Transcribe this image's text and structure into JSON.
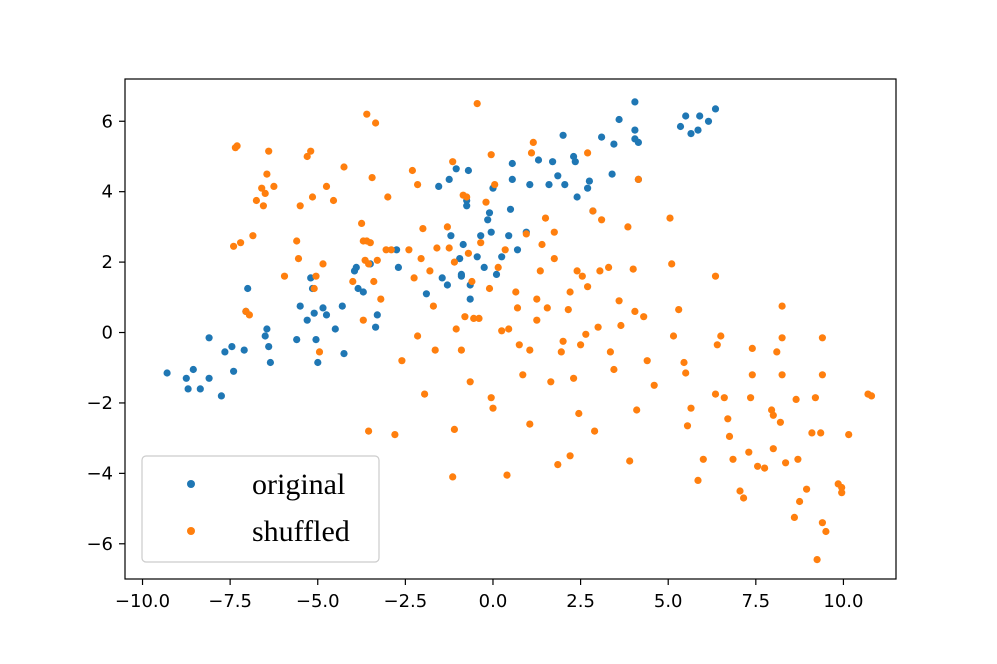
{
  "chart_data": {
    "type": "scatter",
    "title": "",
    "xlabel": "",
    "ylabel": "",
    "xlim": [
      -10.5,
      11.5
    ],
    "ylim": [
      -7.0,
      7.2
    ],
    "xticks": [
      -10.0,
      -7.5,
      -5.0,
      -2.5,
      0.0,
      2.5,
      5.0,
      7.5,
      10.0
    ],
    "xtick_labels": [
      "−10.0",
      "−7.5",
      "−5.0",
      "−2.5",
      "0.0",
      "2.5",
      "5.0",
      "7.5",
      "10.0"
    ],
    "yticks": [
      -6,
      -4,
      -2,
      0,
      2,
      4,
      6
    ],
    "ytick_labels": [
      "−6",
      "−4",
      "−2",
      "0",
      "2",
      "4",
      "6"
    ],
    "grid": false,
    "legend_position": "lower-left",
    "series": [
      {
        "name": "original",
        "color": "#1f77b4",
        "points": [
          [
            -9.3,
            -1.15
          ],
          [
            -8.75,
            -1.3
          ],
          [
            -8.7,
            -1.6
          ],
          [
            -8.55,
            -1.05
          ],
          [
            -8.35,
            -1.6
          ],
          [
            -8.1,
            -1.3
          ],
          [
            -8.1,
            -0.15
          ],
          [
            -7.75,
            -1.8
          ],
          [
            -7.65,
            -0.55
          ],
          [
            -7.45,
            -0.4
          ],
          [
            -7.4,
            -1.1
          ],
          [
            -7.1,
            -0.5
          ],
          [
            -7.0,
            1.25
          ],
          [
            -7.05,
            0.6
          ],
          [
            -6.5,
            -0.1
          ],
          [
            -6.45,
            0.1
          ],
          [
            -6.4,
            -0.4
          ],
          [
            -6.35,
            -0.85
          ],
          [
            -5.6,
            -0.2
          ],
          [
            -5.5,
            0.75
          ],
          [
            -5.3,
            0.35
          ],
          [
            -5.2,
            1.55
          ],
          [
            -5.15,
            1.25
          ],
          [
            -5.0,
            -0.85
          ],
          [
            -5.05,
            -0.2
          ],
          [
            -5.1,
            0.55
          ],
          [
            -4.85,
            0.7
          ],
          [
            -4.75,
            0.5
          ],
          [
            -4.5,
            0.1
          ],
          [
            -4.3,
            0.75
          ],
          [
            -4.25,
            -0.6
          ],
          [
            -3.95,
            1.75
          ],
          [
            -3.9,
            1.85
          ],
          [
            -3.85,
            1.25
          ],
          [
            -3.7,
            1.15
          ],
          [
            -3.5,
            1.95
          ],
          [
            -3.3,
            0.5
          ],
          [
            -3.35,
            0.15
          ],
          [
            -2.75,
            2.35
          ],
          [
            -2.7,
            1.85
          ],
          [
            -1.9,
            1.1
          ],
          [
            -1.55,
            4.15
          ],
          [
            -1.45,
            1.55
          ],
          [
            -1.3,
            1.35
          ],
          [
            -1.25,
            4.35
          ],
          [
            -1.2,
            2.75
          ],
          [
            -1.05,
            4.65
          ],
          [
            -0.9,
            1.65
          ],
          [
            -0.95,
            2.1
          ],
          [
            -0.85,
            2.5
          ],
          [
            -0.9,
            1.6
          ],
          [
            -0.75,
            3.6
          ],
          [
            -0.7,
            4.6
          ],
          [
            -0.75,
            3.75
          ],
          [
            -0.65,
            0.95
          ],
          [
            -0.65,
            1.35
          ],
          [
            -0.45,
            2.15
          ],
          [
            -0.35,
            2.75
          ],
          [
            -0.25,
            1.85
          ],
          [
            -0.15,
            3.2
          ],
          [
            -0.1,
            3.4
          ],
          [
            -0.05,
            2.85
          ],
          [
            0.0,
            4.1
          ],
          [
            0.1,
            1.65
          ],
          [
            0.25,
            2.15
          ],
          [
            0.45,
            2.75
          ],
          [
            0.5,
            3.5
          ],
          [
            0.55,
            4.8
          ],
          [
            0.55,
            4.35
          ],
          [
            0.7,
            2.35
          ],
          [
            0.95,
            2.85
          ],
          [
            1.05,
            4.2
          ],
          [
            1.3,
            4.9
          ],
          [
            1.6,
            4.2
          ],
          [
            1.7,
            4.85
          ],
          [
            1.85,
            4.45
          ],
          [
            2.0,
            5.6
          ],
          [
            2.05,
            4.2
          ],
          [
            2.3,
            5.0
          ],
          [
            2.35,
            4.85
          ],
          [
            2.4,
            3.85
          ],
          [
            2.7,
            4.1
          ],
          [
            2.75,
            4.3
          ],
          [
            2.85,
            3.45
          ],
          [
            3.1,
            5.55
          ],
          [
            3.4,
            4.5
          ],
          [
            3.45,
            5.35
          ],
          [
            3.6,
            6.05
          ],
          [
            4.05,
            6.55
          ],
          [
            4.05,
            5.75
          ],
          [
            4.05,
            5.5
          ],
          [
            4.15,
            5.4
          ],
          [
            4.15,
            4.35
          ],
          [
            5.35,
            5.85
          ],
          [
            5.5,
            6.15
          ],
          [
            5.65,
            5.65
          ],
          [
            5.85,
            5.75
          ],
          [
            5.9,
            6.15
          ],
          [
            6.15,
            6.0
          ],
          [
            6.35,
            6.35
          ]
        ]
      },
      {
        "name": "shuffled",
        "color": "#ff7f0e",
        "points": [
          [
            -7.35,
            5.25
          ],
          [
            -7.3,
            5.3
          ],
          [
            -7.4,
            2.45
          ],
          [
            -7.2,
            2.55
          ],
          [
            -7.05,
            0.6
          ],
          [
            -6.95,
            0.5
          ],
          [
            -6.85,
            2.75
          ],
          [
            -6.75,
            3.75
          ],
          [
            -6.6,
            4.1
          ],
          [
            -6.55,
            3.6
          ],
          [
            -6.5,
            3.95
          ],
          [
            -6.45,
            4.5
          ],
          [
            -6.4,
            5.15
          ],
          [
            -6.25,
            4.15
          ],
          [
            -5.95,
            1.6
          ],
          [
            -5.6,
            2.6
          ],
          [
            -5.55,
            2.1
          ],
          [
            -5.5,
            3.6
          ],
          [
            -5.3,
            5.0
          ],
          [
            -5.2,
            5.15
          ],
          [
            -5.15,
            3.85
          ],
          [
            -5.1,
            1.25
          ],
          [
            -5.05,
            1.6
          ],
          [
            -4.95,
            -0.55
          ],
          [
            -4.85,
            1.95
          ],
          [
            -4.75,
            4.15
          ],
          [
            -4.55,
            3.75
          ],
          [
            -4.25,
            4.7
          ],
          [
            -4.0,
            1.45
          ],
          [
            -3.75,
            3.1
          ],
          [
            -3.7,
            2.6
          ],
          [
            -3.65,
            2.05
          ],
          [
            -3.6,
            6.2
          ],
          [
            -3.6,
            2.6
          ],
          [
            -3.55,
            1.95
          ],
          [
            -3.5,
            2.55
          ],
          [
            -3.45,
            4.4
          ],
          [
            -3.4,
            1.45
          ],
          [
            -3.35,
            5.95
          ],
          [
            -3.3,
            2.05
          ],
          [
            -3.2,
            0.95
          ],
          [
            -3.05,
            2.35
          ],
          [
            -3.0,
            3.85
          ],
          [
            -2.9,
            2.35
          ],
          [
            -2.8,
            -2.9
          ],
          [
            -3.55,
            -2.8
          ],
          [
            -3.7,
            0.35
          ],
          [
            -2.6,
            -0.8
          ],
          [
            -2.25,
            1.55
          ],
          [
            -2.4,
            2.35
          ],
          [
            -2.3,
            4.6
          ],
          [
            -2.15,
            4.2
          ],
          [
            -2.05,
            2.1
          ],
          [
            -2.0,
            2.95
          ],
          [
            -2.15,
            -0.1
          ],
          [
            -1.95,
            -1.75
          ],
          [
            -1.8,
            1.75
          ],
          [
            -1.7,
            0.75
          ],
          [
            -1.65,
            -0.5
          ],
          [
            -1.6,
            2.4
          ],
          [
            -1.3,
            3.0
          ],
          [
            -1.25,
            2.4
          ],
          [
            -1.15,
            4.85
          ],
          [
            -1.1,
            2.0
          ],
          [
            -1.05,
            0.1
          ],
          [
            -1.1,
            -2.75
          ],
          [
            -1.15,
            -4.1
          ],
          [
            -0.9,
            -0.5
          ],
          [
            -0.85,
            3.9
          ],
          [
            -0.8,
            0.45
          ],
          [
            -0.75,
            3.85
          ],
          [
            -0.7,
            2.25
          ],
          [
            -0.65,
            -1.4
          ],
          [
            -0.6,
            1.45
          ],
          [
            -0.55,
            0.4
          ],
          [
            -0.45,
            6.5
          ],
          [
            -0.4,
            0.4
          ],
          [
            -0.35,
            2.55
          ],
          [
            -0.2,
            3.7
          ],
          [
            -0.1,
            1.25
          ],
          [
            -0.05,
            5.05
          ],
          [
            0.0,
            -2.15
          ],
          [
            -0.05,
            -1.85
          ],
          [
            0.05,
            4.2
          ],
          [
            0.15,
            1.85
          ],
          [
            0.25,
            0.05
          ],
          [
            0.35,
            2.35
          ],
          [
            0.4,
            -4.05
          ],
          [
            0.45,
            0.1
          ],
          [
            0.65,
            1.15
          ],
          [
            0.7,
            0.7
          ],
          [
            0.75,
            -0.35
          ],
          [
            0.85,
            -1.2
          ],
          [
            0.95,
            2.8
          ],
          [
            1.05,
            -2.6
          ],
          [
            1.05,
            -0.5
          ],
          [
            1.1,
            5.1
          ],
          [
            1.15,
            5.4
          ],
          [
            1.25,
            0.95
          ],
          [
            1.25,
            0.35
          ],
          [
            1.35,
            1.75
          ],
          [
            1.4,
            2.5
          ],
          [
            1.5,
            3.25
          ],
          [
            1.55,
            0.7
          ],
          [
            1.65,
            -1.4
          ],
          [
            1.75,
            2.1
          ],
          [
            1.75,
            2.85
          ],
          [
            1.85,
            -3.75
          ],
          [
            1.95,
            -0.55
          ],
          [
            2.0,
            -0.25
          ],
          [
            2.15,
            0.65
          ],
          [
            2.2,
            1.15
          ],
          [
            2.2,
            -3.5
          ],
          [
            2.3,
            -1.3
          ],
          [
            2.4,
            1.75
          ],
          [
            2.45,
            -2.3
          ],
          [
            2.5,
            -0.35
          ],
          [
            2.55,
            1.6
          ],
          [
            2.65,
            -0.05
          ],
          [
            2.7,
            1.3
          ],
          [
            2.7,
            5.1
          ],
          [
            2.85,
            3.45
          ],
          [
            2.9,
            -2.8
          ],
          [
            3.0,
            0.15
          ],
          [
            3.05,
            1.75
          ],
          [
            3.1,
            3.2
          ],
          [
            3.3,
            1.85
          ],
          [
            3.35,
            -0.55
          ],
          [
            3.45,
            -1.05
          ],
          [
            3.6,
            0.9
          ],
          [
            3.65,
            0.2
          ],
          [
            3.85,
            3.0
          ],
          [
            3.9,
            -3.65
          ],
          [
            4.0,
            1.8
          ],
          [
            4.05,
            0.6
          ],
          [
            4.1,
            -2.2
          ],
          [
            4.15,
            4.35
          ],
          [
            4.3,
            0.45
          ],
          [
            4.4,
            -0.8
          ],
          [
            4.6,
            -1.5
          ],
          [
            5.05,
            3.25
          ],
          [
            5.1,
            1.95
          ],
          [
            5.15,
            -0.1
          ],
          [
            5.3,
            0.65
          ],
          [
            5.45,
            -0.85
          ],
          [
            5.5,
            -1.15
          ],
          [
            5.55,
            -2.65
          ],
          [
            5.65,
            -2.15
          ],
          [
            5.85,
            -4.2
          ],
          [
            6.0,
            -3.6
          ],
          [
            6.35,
            -1.75
          ],
          [
            6.35,
            1.6
          ],
          [
            6.4,
            -0.35
          ],
          [
            6.5,
            -0.1
          ],
          [
            6.6,
            -1.85
          ],
          [
            6.7,
            -2.45
          ],
          [
            6.75,
            -2.95
          ],
          [
            6.85,
            -3.6
          ],
          [
            7.05,
            -4.5
          ],
          [
            7.15,
            -4.7
          ],
          [
            7.3,
            -3.4
          ],
          [
            7.35,
            -1.85
          ],
          [
            7.4,
            -1.2
          ],
          [
            7.4,
            -0.45
          ],
          [
            7.55,
            -3.8
          ],
          [
            7.75,
            -3.85
          ],
          [
            7.95,
            -2.2
          ],
          [
            8.0,
            -2.35
          ],
          [
            8.0,
            -3.3
          ],
          [
            8.1,
            -0.55
          ],
          [
            8.2,
            -2.55
          ],
          [
            8.25,
            -1.2
          ],
          [
            8.25,
            -0.15
          ],
          [
            8.25,
            0.75
          ],
          [
            8.35,
            -3.7
          ],
          [
            8.6,
            -5.25
          ],
          [
            8.65,
            -1.9
          ],
          [
            8.7,
            -3.6
          ],
          [
            8.75,
            -4.8
          ],
          [
            8.95,
            -4.45
          ],
          [
            9.1,
            -2.85
          ],
          [
            9.2,
            -1.85
          ],
          [
            9.25,
            -6.45
          ],
          [
            9.35,
            -2.85
          ],
          [
            9.4,
            -5.4
          ],
          [
            9.4,
            -1.2
          ],
          [
            9.4,
            -0.15
          ],
          [
            9.5,
            -5.65
          ],
          [
            9.85,
            -4.3
          ],
          [
            9.95,
            -4.55
          ],
          [
            9.95,
            -4.4
          ],
          [
            10.15,
            -2.9
          ],
          [
            10.7,
            -1.75
          ],
          [
            10.8,
            -1.8
          ]
        ]
      }
    ]
  },
  "legend": {
    "items": [
      {
        "label": "original",
        "color": "#1f77b4"
      },
      {
        "label": "shuffled",
        "color": "#ff7f0e"
      }
    ]
  }
}
